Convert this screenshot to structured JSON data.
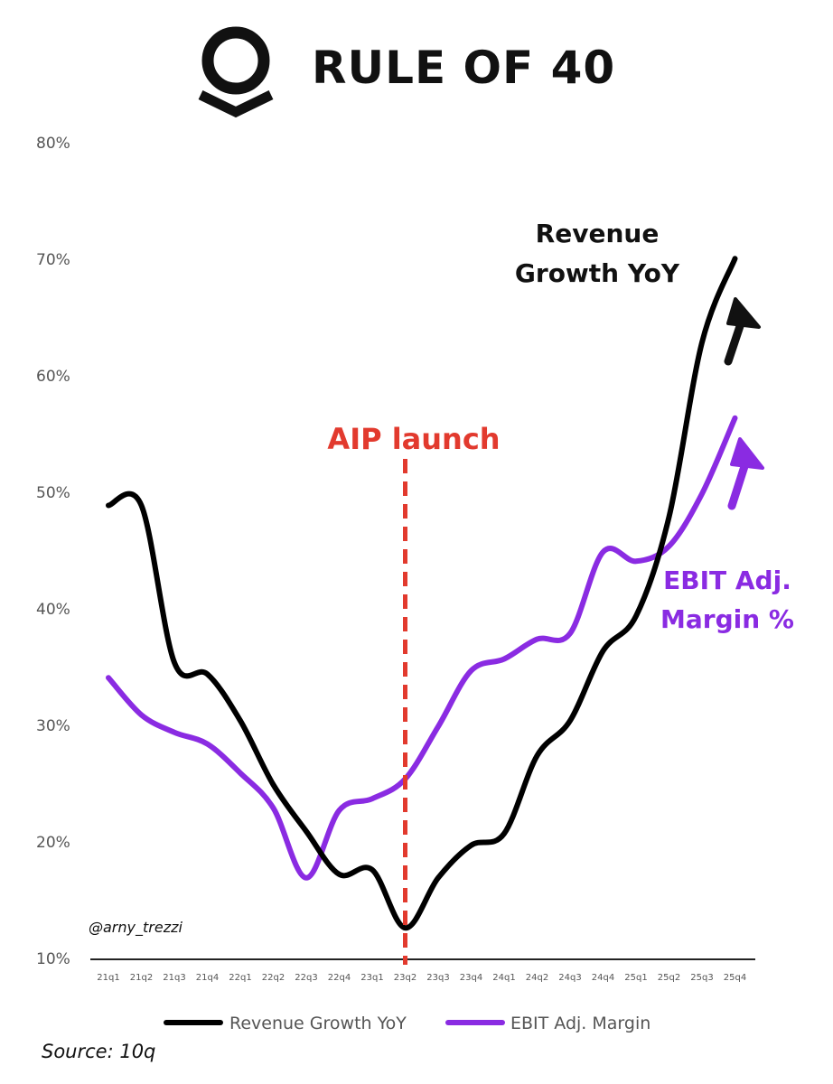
{
  "header": {
    "title": "RULE OF 40",
    "logo_icon": "palantir-logo-icon"
  },
  "chart_data": {
    "type": "line",
    "title": "RULE OF 40",
    "xlabel": "",
    "ylabel": "",
    "ylim": [
      10,
      80
    ],
    "yticks": [
      10,
      20,
      30,
      40,
      50,
      60,
      70,
      80
    ],
    "ytick_labels": [
      "10%",
      "20%",
      "30%",
      "40%",
      "50%",
      "60%",
      "70%",
      "80%"
    ],
    "categories": [
      "21q1",
      "21q2",
      "21q3",
      "21q4",
      "22q1",
      "22q2",
      "22q3",
      "22q4",
      "23q1",
      "23q2",
      "23q3",
      "23q4",
      "24q1",
      "24q2",
      "24q3",
      "24q4",
      "25q1",
      "25q2",
      "25q3",
      "25q4"
    ],
    "series": [
      {
        "name": "Revenue Growth YoY",
        "color": "#000000",
        "values": [
          49,
          49,
          35.5,
          34.5,
          30.5,
          25,
          21,
          17.3,
          17.7,
          12.7,
          17,
          19.8,
          20.8,
          27.5,
          30.5,
          36.5,
          39.5,
          48,
          63,
          70.2
        ]
      },
      {
        "name": "EBIT Adj. Margin",
        "color": "#8a2be2",
        "values": [
          34.2,
          31,
          29.5,
          28.5,
          26,
          23,
          17,
          22.8,
          23.8,
          25.5,
          30,
          34.8,
          35.8,
          37.5,
          38,
          45,
          44.2,
          45.5,
          50,
          56.5
        ]
      }
    ],
    "legend": [
      "Revenue Growth YoY",
      "EBIT Adj. Margin"
    ],
    "legend_position": "bottom",
    "grid": false,
    "annotations": {
      "launch_line_category": "23q2",
      "launch_label": "AIP launch",
      "revenue_label_line1": "Revenue",
      "revenue_label_line2": "Growth YoY",
      "ebit_label_line1": "EBIT Adj.",
      "ebit_label_line2": "Margin %"
    }
  },
  "watermark": "@arny_trezzi",
  "source": "Source: 10q",
  "colors": {
    "revenue": "#000000",
    "ebit": "#8a2be2",
    "launch": "#e23a2e",
    "axis": "#222222",
    "tick_text": "#555555"
  }
}
